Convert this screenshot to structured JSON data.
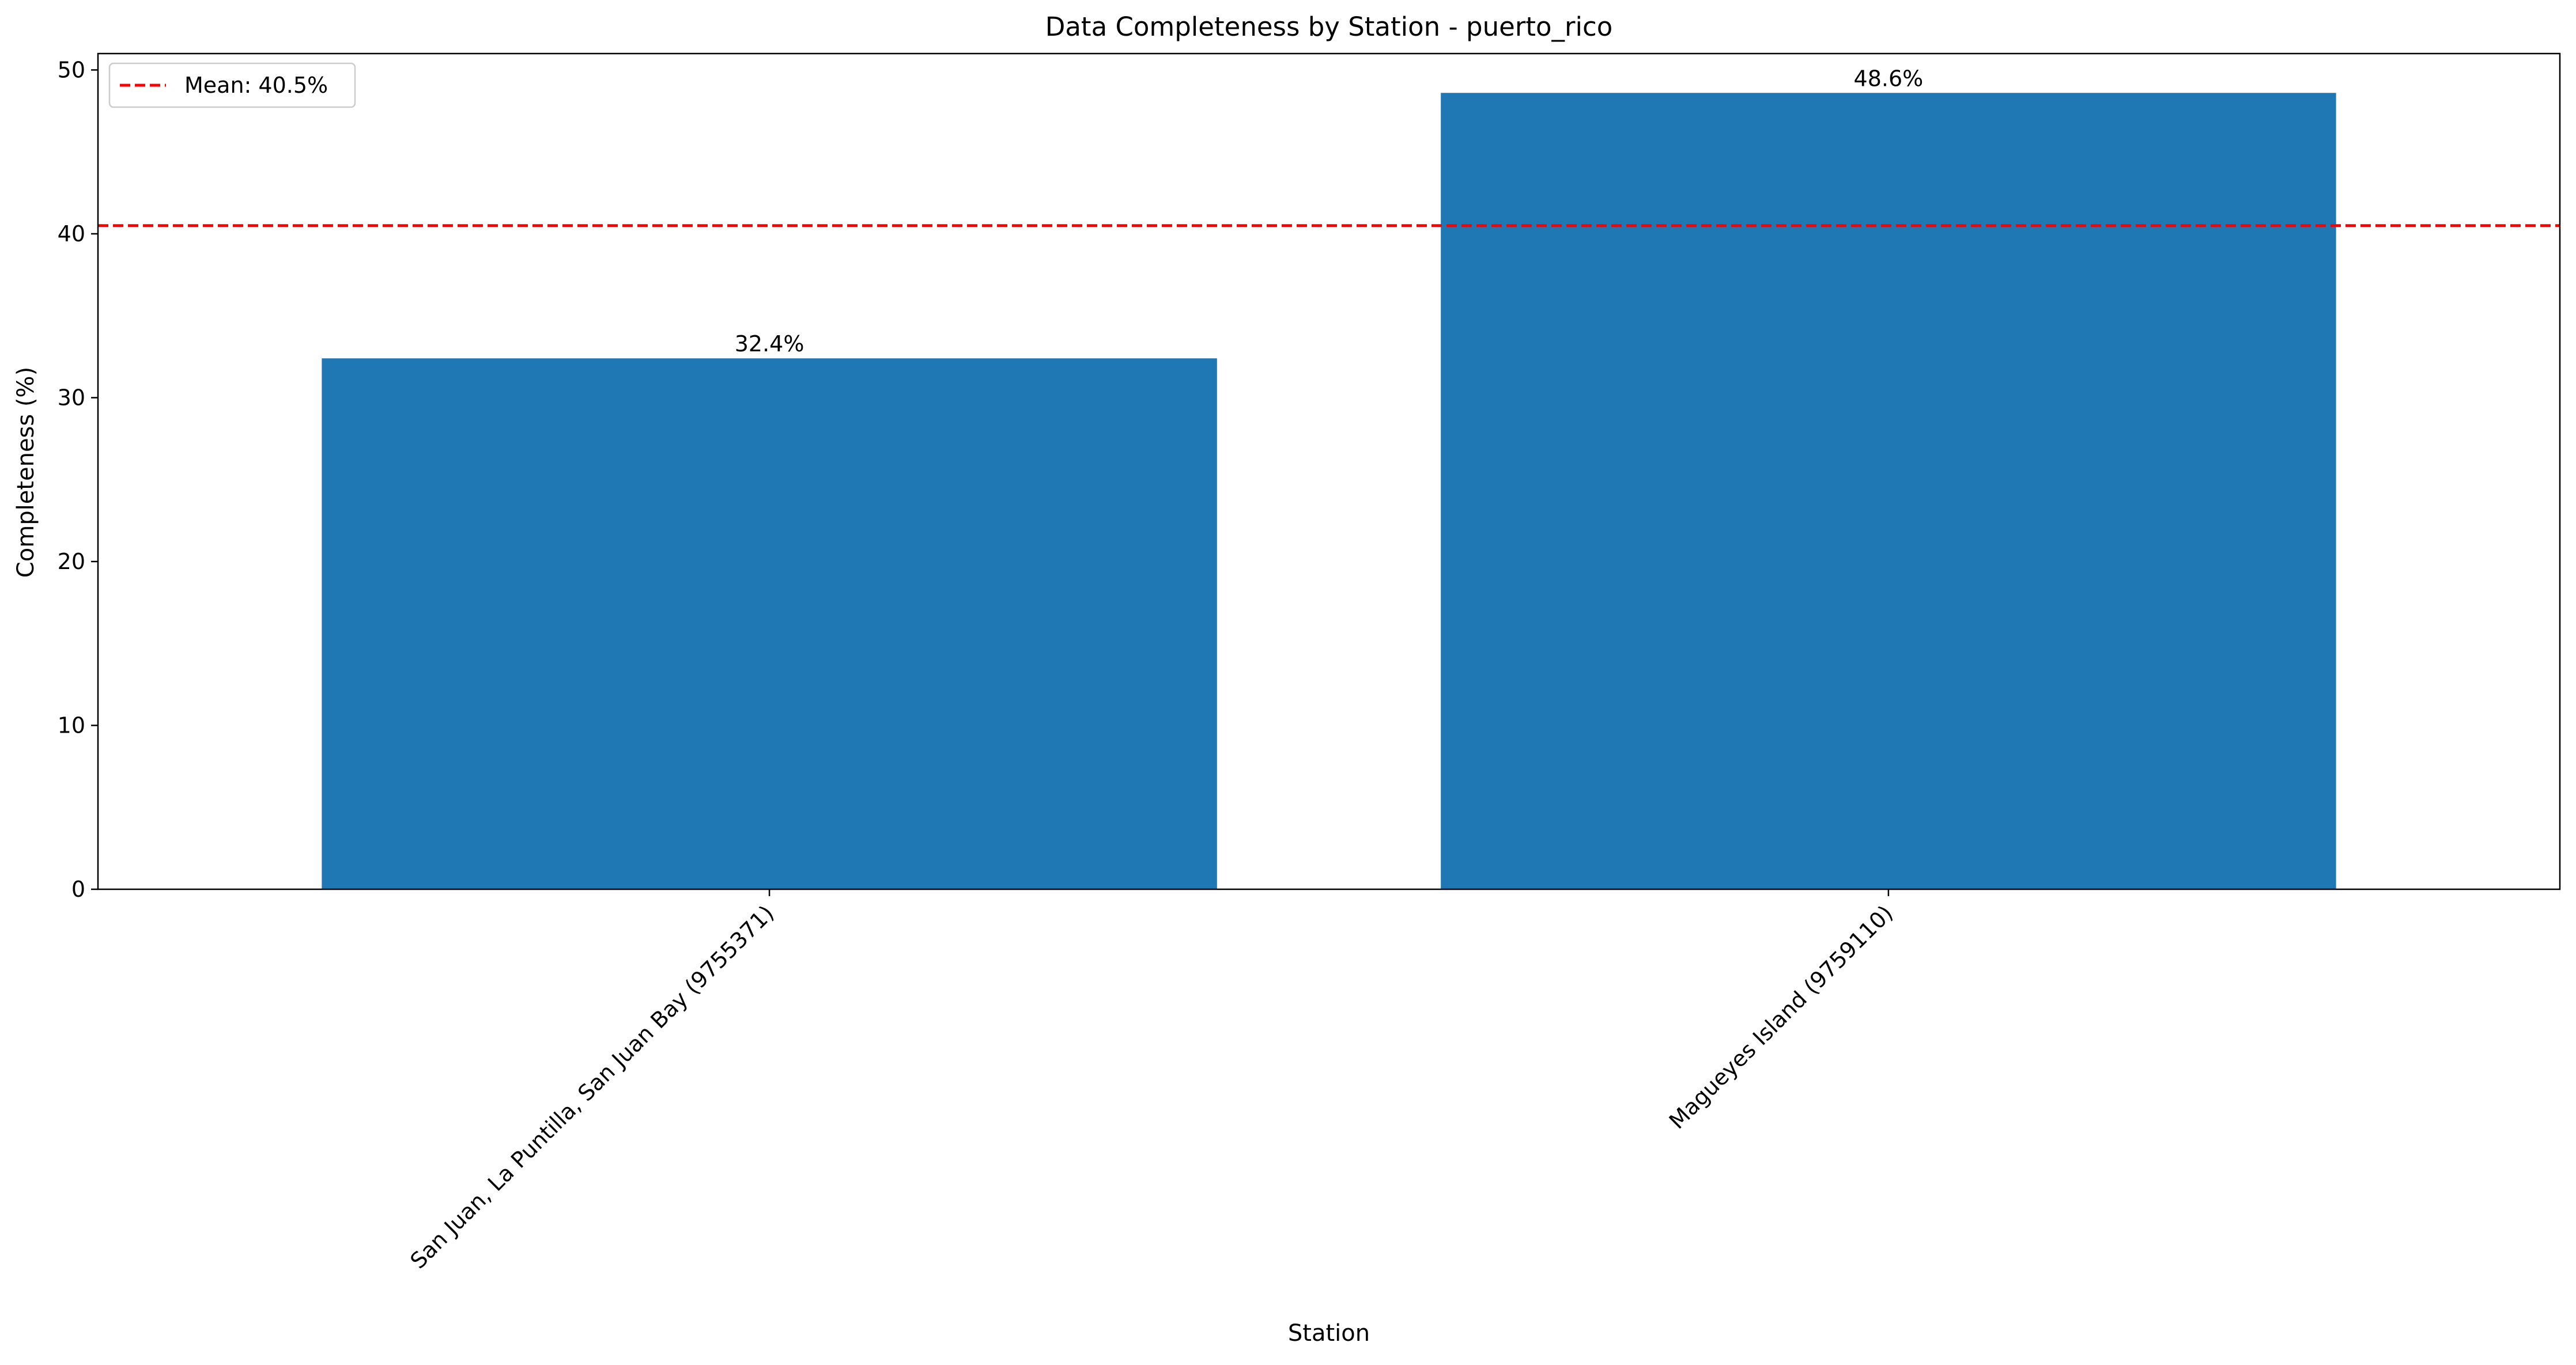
{
  "chart_data": {
    "type": "bar",
    "title": "Data Completeness by Station - puerto_rico",
    "xlabel": "Station",
    "ylabel": "Completeness (%)",
    "categories": [
      "San Juan, La Puntilla, San Juan Bay (9755371)",
      "Magueyes Island (9759110)"
    ],
    "values": [
      32.4,
      48.6
    ],
    "value_labels": [
      "32.4%",
      "48.6%"
    ],
    "ylim": [
      0,
      51
    ],
    "yticks": [
      0,
      10,
      20,
      30,
      40,
      50
    ],
    "ytick_labels": [
      "0",
      "10",
      "20",
      "30",
      "40",
      "50"
    ],
    "bar_color": "#1f77b4",
    "mean_line": {
      "value": 40.5,
      "label": "Mean: 40.5%",
      "color": "#ff0000",
      "style": "dashed"
    },
    "legend": {
      "placement": "top-left",
      "entries": [
        "Mean: 40.5%"
      ]
    },
    "grid": false
  }
}
